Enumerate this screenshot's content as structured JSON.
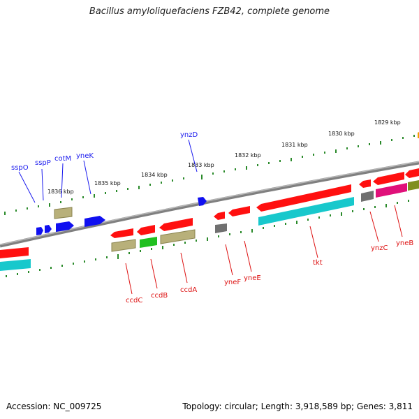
{
  "title": "Bacillus amyloliquefaciens FZB42, complete genome",
  "footer": {
    "accession": "Accession: NC_009725",
    "summary": "Topology: circular; Length: 3,918,589 bp; Genes: 3,811"
  },
  "ruler": {
    "labels": [
      "1836 kbp",
      "1835 kbp",
      "1834 kbp",
      "1833 kbp",
      "1832 kbp",
      "1831 kbp",
      "1830 kbp",
      "1829 kbp"
    ]
  },
  "genes_top": [
    {
      "name": "sspO",
      "color": "#0000ee"
    },
    {
      "name": "sspP",
      "color": "#0000ee"
    },
    {
      "name": "cotM",
      "color": "#0000ee"
    },
    {
      "name": "yneK",
      "color": "#0000ee"
    },
    {
      "name": "ynzD",
      "color": "#0000ee"
    }
  ],
  "genes_bottom": [
    {
      "name": "ccdC",
      "color": "#cc0000"
    },
    {
      "name": "ccdB",
      "color": "#cc0000"
    },
    {
      "name": "ccdA",
      "color": "#cc0000"
    },
    {
      "name": "yneF",
      "color": "#cc0000"
    },
    {
      "name": "yneE",
      "color": "#cc0000"
    },
    {
      "name": "tkt",
      "color": "#cc0000"
    },
    {
      "name": "ynzC",
      "color": "#cc0000"
    },
    {
      "name": "yneB",
      "color": "#cc0000"
    }
  ],
  "feature_colors": {
    "forward_cds": "#1010f0",
    "reverse_cds": "#ff1010",
    "khaki": "#b8b07a",
    "cyan": "#18c8cc",
    "green": "#20c020",
    "gray": "#707070",
    "magenta": "#e0107a",
    "olive": "#7f8f20",
    "orange": "#f0a000"
  }
}
